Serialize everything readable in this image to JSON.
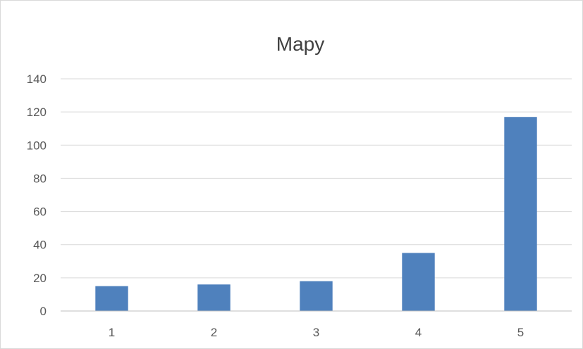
{
  "chart_data": {
    "type": "bar",
    "title": "Mapy",
    "xlabel": "",
    "ylabel": "",
    "categories": [
      "1",
      "2",
      "3",
      "4",
      "5"
    ],
    "values": [
      15,
      16,
      18,
      35,
      117
    ],
    "ylim": [
      0,
      140
    ],
    "yticks": [
      0,
      20,
      40,
      60,
      80,
      100,
      120,
      140
    ],
    "grid": true,
    "legend": "none",
    "colors": {
      "bar": "#4f81bd",
      "grid": "#d9d9d9",
      "axis": "#bfbfbf",
      "tick_text": "#595959",
      "title_text": "#404040"
    }
  }
}
